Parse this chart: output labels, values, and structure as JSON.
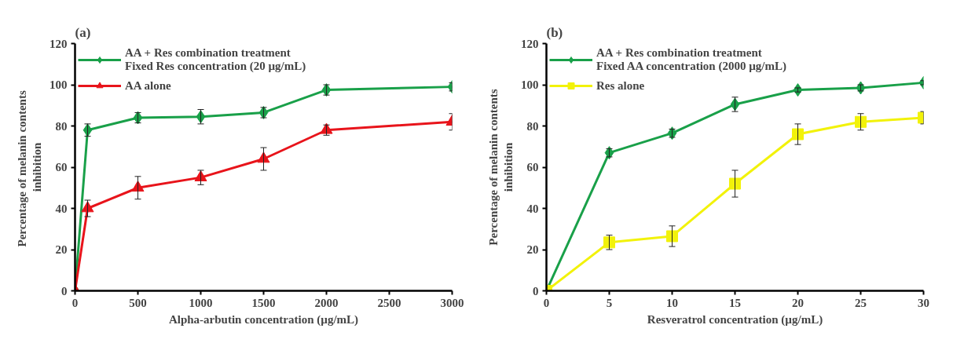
{
  "chart_data": [
    {
      "type": "line",
      "title": "(a)",
      "xlabel": "Alpha-arbutin concentration (µg/mL)",
      "ylabel": "Percentage of  melanin contents inhibition",
      "x": [
        0,
        100,
        500,
        1000,
        1500,
        2000,
        3000
      ],
      "xlim": [
        0,
        3000
      ],
      "xticks": [
        0,
        500,
        1000,
        1500,
        2000,
        2500,
        3000
      ],
      "ylim": [
        0,
        120
      ],
      "yticks": [
        0,
        20,
        40,
        60,
        80,
        100,
        120
      ],
      "grid": false,
      "legend": "top left",
      "series": [
        {
          "name": "AA + Res combination treatment\nFixed Res concentration (20 µg/mL)",
          "color": "#19a049",
          "marker": "diamond",
          "values": [
            0,
            78,
            84,
            84.5,
            86.5,
            97.5,
            99
          ],
          "errors": [
            null,
            3,
            2.5,
            3.5,
            2.5,
            2.5,
            2
          ]
        },
        {
          "name": "AA alone",
          "color": "#e8141b",
          "marker": "triangle",
          "values": [
            0,
            40,
            50,
            55,
            64,
            78,
            82
          ],
          "errors": [
            null,
            4,
            5.5,
            3.5,
            5.5,
            2.5,
            4
          ]
        }
      ]
    },
    {
      "type": "line",
      "title": "(b)",
      "xlabel": "Resveratrol concentration (µg/mL)",
      "ylabel": "Percentage of melanin contents inhibition",
      "x": [
        0,
        5,
        10,
        15,
        20,
        25,
        30
      ],
      "xlim": [
        0,
        30
      ],
      "xticks": [
        0,
        5,
        10,
        15,
        20,
        25,
        30
      ],
      "ylim": [
        0,
        120
      ],
      "yticks": [
        0,
        20,
        40,
        60,
        80,
        100,
        120
      ],
      "grid": false,
      "legend": "top left",
      "series": [
        {
          "name": "AA + Res combination treatment\nFixed AA concentration (2000 µg/mL)",
          "color": "#19a049",
          "marker": "diamond",
          "values": [
            0,
            67,
            76.5,
            90.5,
            97.5,
            98.5,
            101
          ],
          "errors": [
            null,
            2,
            2,
            3.5,
            1,
            1.5,
            1
          ]
        },
        {
          "name": "Res alone",
          "color": "#f2f20a",
          "marker": "square",
          "values": [
            0,
            23.5,
            26.5,
            52,
            76,
            82,
            84
          ],
          "errors": [
            null,
            3.5,
            5,
            6.5,
            5,
            4,
            3
          ]
        }
      ]
    }
  ]
}
